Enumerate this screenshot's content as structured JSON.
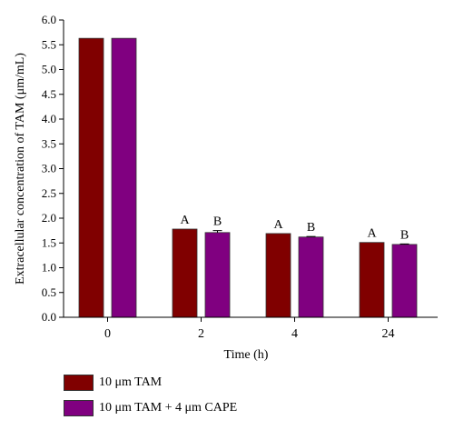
{
  "chart_data": {
    "type": "bar",
    "categories": [
      "0",
      "2",
      "4",
      "24"
    ],
    "series": [
      {
        "name": "10 μm TAM",
        "values": [
          5.63,
          1.78,
          1.69,
          1.51
        ],
        "errors": [
          0,
          0,
          0,
          0
        ],
        "color": "#800000"
      },
      {
        "name": "10 μm TAM + 4 μm CAPE",
        "values": [
          5.63,
          1.71,
          1.62,
          1.47
        ],
        "errors": [
          0,
          0.04,
          0.01,
          0.01
        ],
        "color": "#800080"
      }
    ],
    "significance_labels": [
      [
        "",
        "A",
        "A",
        "A"
      ],
      [
        "",
        "B",
        "B",
        "B"
      ]
    ],
    "xlabel": "Time (h)",
    "ylabel": "Extracellular concentration of TAM (μm/mL)",
    "ylim": [
      0,
      6
    ],
    "yticks": [
      "0.0",
      "0.5",
      "1.0",
      "1.5",
      "2.0",
      "2.5",
      "3.0",
      "3.5",
      "4.0",
      "4.5",
      "5.0",
      "5.5",
      "6.0"
    ],
    "grid": false,
    "legend_position": "bottom-left"
  }
}
